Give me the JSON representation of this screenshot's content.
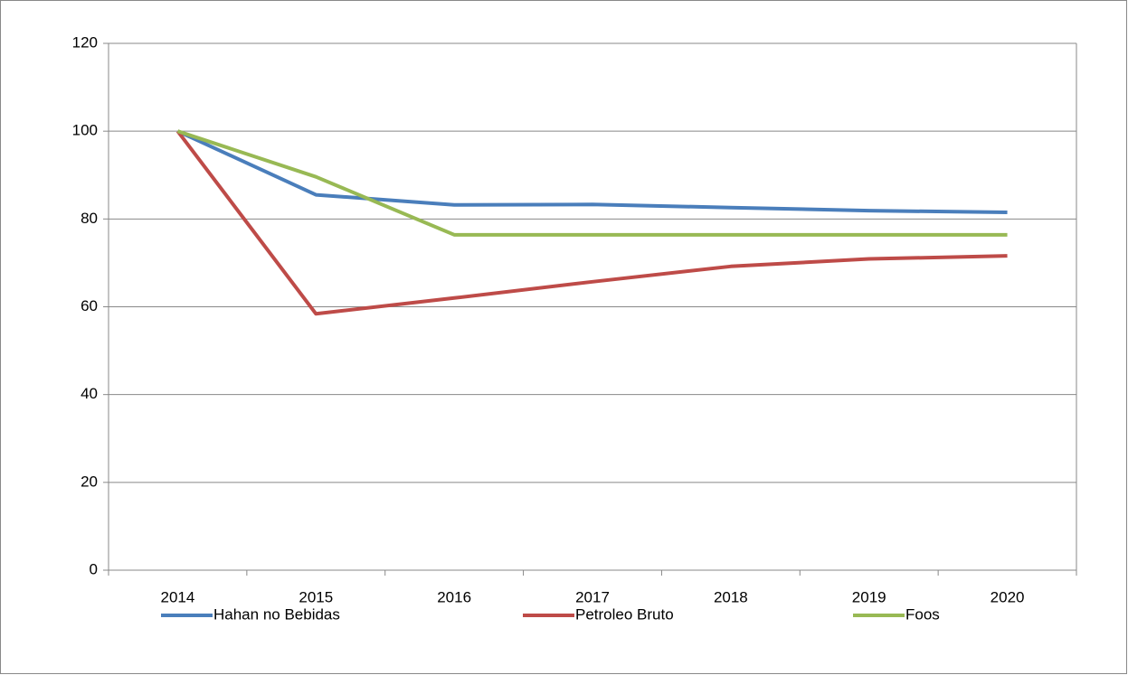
{
  "chart_data": {
    "type": "line",
    "categories": [
      "2014",
      "2015",
      "2016",
      "2017",
      "2018",
      "2019",
      "2020"
    ],
    "series": [
      {
        "name": "Hahan no Bebidas",
        "color": "#4a7ebb",
        "values": [
          100,
          85.5,
          83.2,
          83.3,
          82.6,
          81.9,
          81.5
        ]
      },
      {
        "name": "Petroleo Bruto",
        "color": "#be4b48",
        "values": [
          100,
          58.4,
          62.0,
          65.7,
          69.2,
          70.9,
          71.6
        ]
      },
      {
        "name": "Foos",
        "color": "#98b954",
        "values": [
          100,
          89.6,
          76.4,
          76.4,
          76.4,
          76.4,
          76.4
        ]
      }
    ],
    "ylim": [
      0,
      120
    ],
    "yticks": [
      0,
      20,
      40,
      60,
      80,
      100,
      120
    ],
    "grid": true,
    "legend": "bottom"
  }
}
